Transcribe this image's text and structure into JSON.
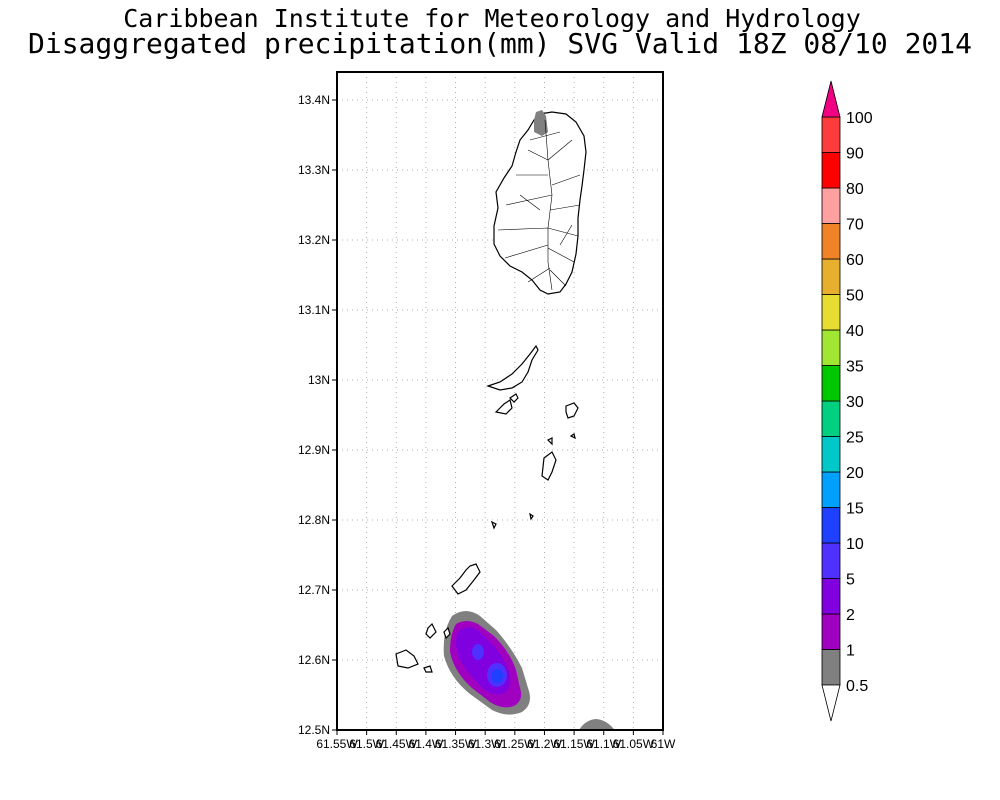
{
  "header": {
    "institution": "Caribbean Institute for Meteorology and Hydrology",
    "product": "Disaggregated precipitation(mm) SVG Valid 18Z 08/10 2014"
  },
  "map": {
    "lat_ticks": [
      "13.4N",
      "13.3N",
      "13.2N",
      "13.1N",
      "13N",
      "12.9N",
      "12.8N",
      "12.7N",
      "12.6N",
      "12.5N"
    ],
    "lon_ticks": [
      "61.55W",
      "61.5W",
      "61.45W",
      "61.4W",
      "61.35W",
      "61.3W",
      "61.25W",
      "61.2W",
      "61.15W",
      "61.1W",
      "61.05W",
      "61W"
    ],
    "lat_range": [
      12.5,
      13.44
    ],
    "lon_range": [
      -61.55,
      -61.0
    ],
    "grid": true,
    "features": [
      "Saint Vincent",
      "Grenadines",
      "Grenada (north tip)"
    ]
  },
  "colorbar": {
    "levels": [
      "0.5",
      "1",
      "2",
      "5",
      "10",
      "15",
      "20",
      "25",
      "30",
      "35",
      "40",
      "50",
      "60",
      "70",
      "80",
      "90",
      "100"
    ],
    "colors": [
      "#808080",
      "#a000c0",
      "#8000e0",
      "#5030ff",
      "#2040ff",
      "#00a0ff",
      "#00c8c8",
      "#00d080",
      "#00c800",
      "#a0e632",
      "#e6dc32",
      "#e6af2d",
      "#f08228",
      "#ffa0a0",
      "#ff0000",
      "#ff3c3c",
      "#f00082"
    ],
    "extend": "both"
  }
}
